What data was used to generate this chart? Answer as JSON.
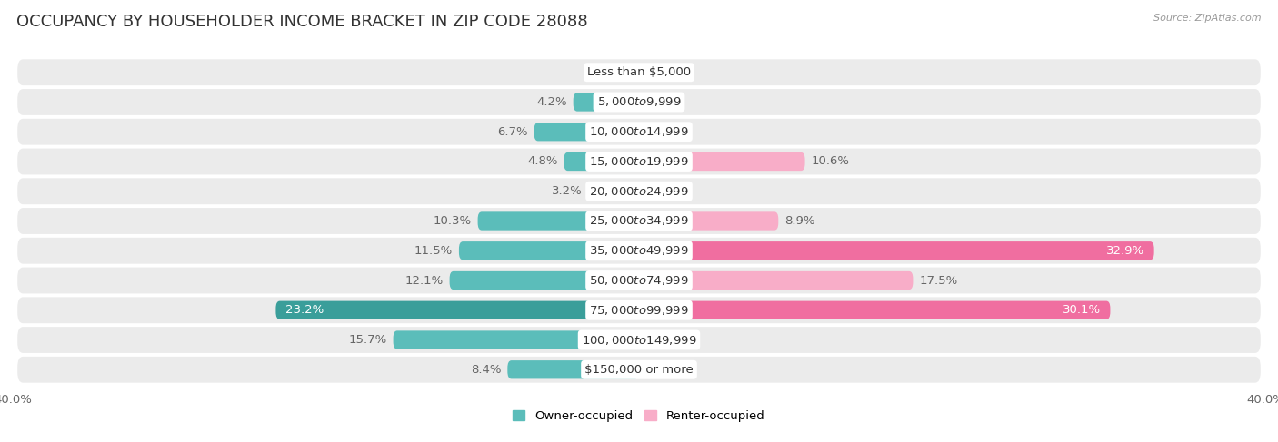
{
  "title": "OCCUPANCY BY HOUSEHOLDER INCOME BRACKET IN ZIP CODE 28088",
  "source": "Source: ZipAtlas.com",
  "categories": [
    "Less than $5,000",
    "$5,000 to $9,999",
    "$10,000 to $14,999",
    "$15,000 to $19,999",
    "$20,000 to $24,999",
    "$25,000 to $34,999",
    "$35,000 to $49,999",
    "$50,000 to $74,999",
    "$75,000 to $99,999",
    "$100,000 to $149,999",
    "$150,000 or more"
  ],
  "owner_values": [
    0.0,
    4.2,
    6.7,
    4.8,
    3.2,
    10.3,
    11.5,
    12.1,
    23.2,
    15.7,
    8.4
  ],
  "renter_values": [
    0.0,
    0.0,
    0.0,
    10.6,
    0.0,
    8.9,
    32.9,
    17.5,
    30.1,
    0.0,
    0.0
  ],
  "owner_color_normal": "#5BBDBA",
  "owner_color_large": "#3A9E9A",
  "renter_color_normal": "#F8ADC8",
  "renter_color_large": "#F06EA0",
  "background_color": "#ffffff",
  "row_bg_color": "#ebebeb",
  "xlim": [
    -40,
    40
  ],
  "bar_height": 0.62,
  "legend_owner": "Owner-occupied",
  "legend_renter": "Renter-occupied",
  "title_fontsize": 13,
  "label_fontsize": 9.5,
  "category_fontsize": 9.5,
  "axis_fontsize": 9.5
}
